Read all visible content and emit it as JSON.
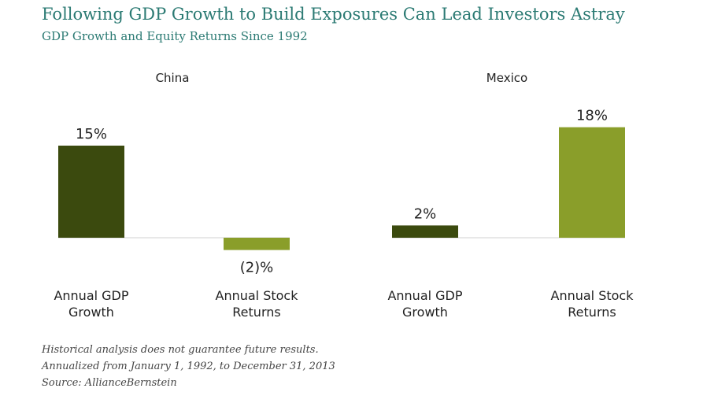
{
  "header": {
    "title": "Following GDP Growth to Build Exposures Can Lead Investors Astray",
    "subtitle": "GDP Growth and Equity Returns Since 1992"
  },
  "chart_data": [
    {
      "type": "bar",
      "title": "China",
      "categories": [
        "Annual GDP Growth",
        "Annual Stock Returns"
      ],
      "category_lines": [
        [
          "Annual GDP",
          "Growth"
        ],
        [
          "Annual Stock",
          "Returns"
        ]
      ],
      "values": [
        15,
        -2
      ],
      "value_labels": [
        "15%",
        "(2)%"
      ],
      "colors": [
        "#3b4a0e",
        "#8a9e2a"
      ],
      "ylim": [
        -2,
        18
      ],
      "grid": false
    },
    {
      "type": "bar",
      "title": "Mexico",
      "categories": [
        "Annual GDP Growth",
        "Annual Stock Returns"
      ],
      "category_lines": [
        [
          "Annual GDP",
          "Growth"
        ],
        [
          "Annual Stock",
          "Returns"
        ]
      ],
      "values": [
        2,
        18
      ],
      "value_labels": [
        "2%",
        "18%"
      ],
      "colors": [
        "#3b4a0e",
        "#8a9e2a"
      ],
      "ylim": [
        -2,
        18
      ],
      "grid": false
    }
  ],
  "footnotes": [
    "Historical analysis does not guarantee future results.",
    "Annualized from January 1, 1992, to December 31, 2013",
    "Source: AllianceBernstein"
  ]
}
